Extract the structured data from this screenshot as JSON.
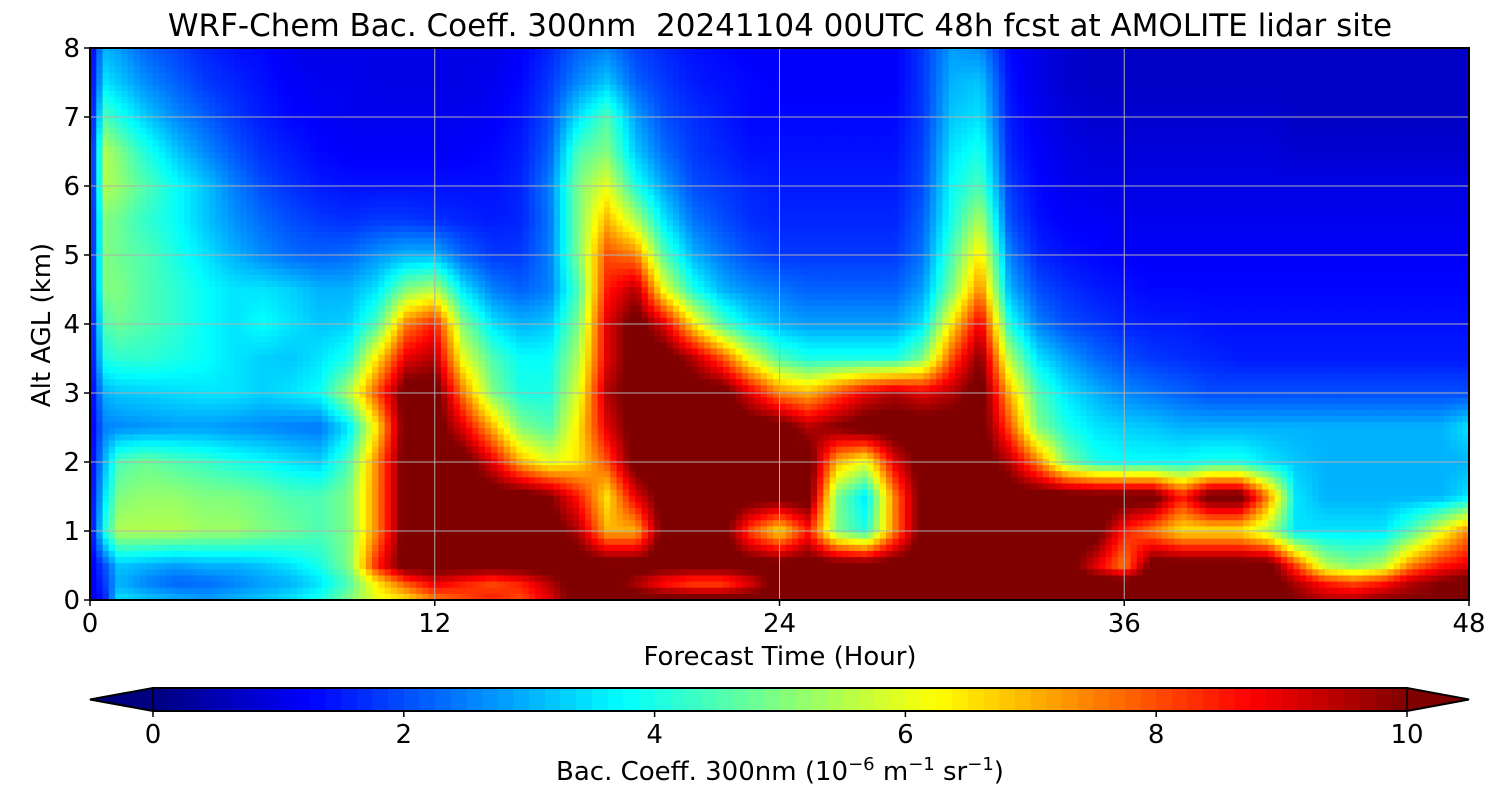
{
  "chart_data": {
    "type": "heatmap",
    "title": "WRF-Chem Bac. Coeff. 300nm  20241104 00UTC 48h fcst at AMOLITE lidar site",
    "xlabel": "Forecast Time (Hour)",
    "ylabel": "Alt AGL (km)",
    "xlim": [
      0,
      48
    ],
    "ylim": [
      0,
      8
    ],
    "xticks": [
      0,
      12,
      24,
      36,
      48
    ],
    "yticks": [
      0,
      1,
      2,
      3,
      4,
      5,
      6,
      7,
      8
    ],
    "grid": true,
    "colormap": "jet",
    "colorbar": {
      "orientation": "horizontal",
      "placement": "bottom",
      "label_prefix": "Bac. Coeff. 300nm  (10",
      "label_exp1": "−6",
      "label_mid": " m",
      "label_exp2": "−1",
      "label_mid2": " sr",
      "label_exp3": "−1",
      "label_suffix": ")",
      "min": 0,
      "max": 10,
      "ticks": [
        0,
        2,
        4,
        6,
        8,
        10
      ],
      "extend": "both"
    },
    "x_hours": [
      0,
      0.5,
      1,
      2,
      3,
      4,
      5,
      6,
      7,
      8,
      9,
      10,
      11,
      12,
      13,
      14,
      15,
      16,
      17,
      18,
      19,
      20,
      21,
      22,
      23,
      24,
      25,
      26,
      27,
      28,
      29,
      30,
      31,
      32,
      33,
      34,
      35,
      36,
      37,
      38,
      39,
      40,
      41,
      42,
      43,
      44,
      45,
      46,
      47,
      48
    ],
    "y_km": [
      0,
      0.25,
      0.5,
      1,
      1.5,
      2,
      2.5,
      3,
      3.5,
      4,
      4.5,
      5,
      5.5,
      6,
      6.5,
      7,
      7.5,
      8
    ],
    "z": [
      [
        1.0,
        1.5,
        3.5,
        3.2,
        3.0,
        2.8,
        3.0,
        3.2,
        3.5,
        4.0,
        5.0,
        6.0,
        6.5,
        7.5,
        8.0,
        8.5,
        8.0,
        9.0,
        10.5,
        10.5,
        10.5,
        10.5,
        10.5,
        10.5,
        10.5,
        10.5,
        10.5,
        10.5,
        10.5,
        10.5,
        10.5,
        10.5,
        10.5,
        10.5,
        10.5,
        10.5,
        10.5,
        10.5,
        10.5,
        10.5,
        10.5,
        10.5,
        10.5,
        10.0,
        9.5,
        9.5,
        10.0,
        10.0,
        10.0,
        10.0
      ],
      [
        1.0,
        1.8,
        3.0,
        2.5,
        2.2,
        2.3,
        2.5,
        2.8,
        3.0,
        3.5,
        4.5,
        6.5,
        8.0,
        9.0,
        8.5,
        8.0,
        8.5,
        9.5,
        10.5,
        10.5,
        9.5,
        8.5,
        8.0,
        8.0,
        9.0,
        10.5,
        10.5,
        10.5,
        10.5,
        10.5,
        10.5,
        10.5,
        10.5,
        10.5,
        10.5,
        10.5,
        10.5,
        10.5,
        10.5,
        10.5,
        10.5,
        10.5,
        10.5,
        9.5,
        8.5,
        8.0,
        8.5,
        9.5,
        10.0,
        10.5
      ],
      [
        1.0,
        2.0,
        3.2,
        3.0,
        2.8,
        3.0,
        3.0,
        3.2,
        3.5,
        4.0,
        5.0,
        8.5,
        10.5,
        10.5,
        10.5,
        10.5,
        10.5,
        10.5,
        10.5,
        10.5,
        10.5,
        10.5,
        10.5,
        10.5,
        10.5,
        10.5,
        10.5,
        10.5,
        10.5,
        10.5,
        10.5,
        10.5,
        10.5,
        10.5,
        10.5,
        10.5,
        9.0,
        7.5,
        10.5,
        10.5,
        10.5,
        10.5,
        10.5,
        8.0,
        5.5,
        5.0,
        5.5,
        7.5,
        8.5,
        9.0
      ],
      [
        1.0,
        4.0,
        5.5,
        5.5,
        5.5,
        5.3,
        5.3,
        5.0,
        4.8,
        4.5,
        5.0,
        7.5,
        10.5,
        10.5,
        10.5,
        10.5,
        10.5,
        10.5,
        9.5,
        7.0,
        7.0,
        10.5,
        10.5,
        10.5,
        8.0,
        6.5,
        8.5,
        5.0,
        4.0,
        7.5,
        10.5,
        10.5,
        10.5,
        10.5,
        10.5,
        10.5,
        10.5,
        8.5,
        7.5,
        6.5,
        6.5,
        6.5,
        5.5,
        3.5,
        3.5,
        3.5,
        3.5,
        4.5,
        6.0,
        7.5
      ],
      [
        1.0,
        3.5,
        5.0,
        5.2,
        5.2,
        5.0,
        5.0,
        4.8,
        4.5,
        4.5,
        5.0,
        7.5,
        10.5,
        10.5,
        10.5,
        10.5,
        10.5,
        10.0,
        8.5,
        6.5,
        9.0,
        10.5,
        10.5,
        10.5,
        10.5,
        10.5,
        10.5,
        5.0,
        3.5,
        7.5,
        10.5,
        10.5,
        10.5,
        10.5,
        10.5,
        10.5,
        10.5,
        10.5,
        10.5,
        8.5,
        10.5,
        10.5,
        7.5,
        3.5,
        3.0,
        3.0,
        3.0,
        3.0,
        3.0,
        3.5
      ],
      [
        1.0,
        3.0,
        4.5,
        4.8,
        4.5,
        4.3,
        4.0,
        3.8,
        3.5,
        3.3,
        4.5,
        7.5,
        10.5,
        10.5,
        10.5,
        9.0,
        7.0,
        6.0,
        6.5,
        8.0,
        10.5,
        10.5,
        10.5,
        10.5,
        10.5,
        10.5,
        10.5,
        7.0,
        6.0,
        9.0,
        10.5,
        10.5,
        10.5,
        9.5,
        7.5,
        5.0,
        4.0,
        3.8,
        3.8,
        3.8,
        4.0,
        4.0,
        3.5,
        3.2,
        3.0,
        3.0,
        3.0,
        3.0,
        3.0,
        3.0
      ],
      [
        1.0,
        2.5,
        2.6,
        2.7,
        2.8,
        2.8,
        2.7,
        2.6,
        2.5,
        2.4,
        3.5,
        6.5,
        10.5,
        10.5,
        9.0,
        7.0,
        5.0,
        4.5,
        6.5,
        9.0,
        10.5,
        10.5,
        10.5,
        10.5,
        10.5,
        10.5,
        9.5,
        10.0,
        10.5,
        10.5,
        10.5,
        10.5,
        10.5,
        8.0,
        5.0,
        4.0,
        3.5,
        3.3,
        3.2,
        3.0,
        3.0,
        3.0,
        3.0,
        3.0,
        3.0,
        3.0,
        3.0,
        3.0,
        3.0,
        3.5
      ],
      [
        1.0,
        3.0,
        3.2,
        3.3,
        3.4,
        3.5,
        3.5,
        3.3,
        3.5,
        3.8,
        5.5,
        8.0,
        10.5,
        10.5,
        7.5,
        5.0,
        4.0,
        4.0,
        6.0,
        9.5,
        10.5,
        10.5,
        10.5,
        10.5,
        9.0,
        7.5,
        7.0,
        8.0,
        9.0,
        9.5,
        9.0,
        9.5,
        10.5,
        7.0,
        4.5,
        3.5,
        3.0,
        2.6,
        2.4,
        2.2,
        2.0,
        2.0,
        2.0,
        2.0,
        2.0,
        2.0,
        2.0,
        2.0,
        2.0,
        2.0
      ],
      [
        1.0,
        4.0,
        4.2,
        4.2,
        4.0,
        3.8,
        3.5,
        3.3,
        3.2,
        3.5,
        4.0,
        6.5,
        9.0,
        9.5,
        6.0,
        4.5,
        3.8,
        3.8,
        5.5,
        9.0,
        10.5,
        10.5,
        9.5,
        8.0,
        6.0,
        4.5,
        4.0,
        4.0,
        4.0,
        4.0,
        5.0,
        8.0,
        10.0,
        5.5,
        3.5,
        2.8,
        2.3,
        2.0,
        1.8,
        1.7,
        1.6,
        1.5,
        1.5,
        1.5,
        1.5,
        1.5,
        1.5,
        1.5,
        1.5,
        1.5
      ],
      [
        1.0,
        4.5,
        4.8,
        4.5,
        4.2,
        3.8,
        3.5,
        3.8,
        3.5,
        3.2,
        3.3,
        4.5,
        7.5,
        8.5,
        5.0,
        3.5,
        3.0,
        3.2,
        5.0,
        9.0,
        10.5,
        9.0,
        6.5,
        4.5,
        3.5,
        3.0,
        2.8,
        2.8,
        2.8,
        2.8,
        3.5,
        6.5,
        9.0,
        4.0,
        2.5,
        2.0,
        1.8,
        1.6,
        1.5,
        1.5,
        1.4,
        1.4,
        1.4,
        1.4,
        1.4,
        1.4,
        1.4,
        1.4,
        1.4,
        1.4
      ],
      [
        1.0,
        5.0,
        5.0,
        4.5,
        4.2,
        3.8,
        3.5,
        3.5,
        3.3,
        3.0,
        3.0,
        3.5,
        5.0,
        5.5,
        3.5,
        2.5,
        2.2,
        2.5,
        4.5,
        8.5,
        9.5,
        6.0,
        4.0,
        3.0,
        2.6,
        2.4,
        2.2,
        2.2,
        2.2,
        2.2,
        2.8,
        5.0,
        7.5,
        3.0,
        2.0,
        1.7,
        1.5,
        1.4,
        1.3,
        1.3,
        1.3,
        1.3,
        1.3,
        1.3,
        1.3,
        1.3,
        1.3,
        1.3,
        1.3,
        1.3
      ],
      [
        1.0,
        5.0,
        4.8,
        4.5,
        4.0,
        3.5,
        3.0,
        2.6,
        2.3,
        2.2,
        2.3,
        2.7,
        3.0,
        3.0,
        2.2,
        1.8,
        1.8,
        2.5,
        5.0,
        8.0,
        7.5,
        4.5,
        3.0,
        2.4,
        2.0,
        1.8,
        1.8,
        1.8,
        1.8,
        1.8,
        2.4,
        4.5,
        6.5,
        2.5,
        1.6,
        1.4,
        1.3,
        1.2,
        1.2,
        1.2,
        1.2,
        1.2,
        1.2,
        1.2,
        1.2,
        1.2,
        1.2,
        1.2,
        1.2,
        1.2
      ],
      [
        1.0,
        5.0,
        4.8,
        4.2,
        3.8,
        3.2,
        2.7,
        2.3,
        2.0,
        1.8,
        1.7,
        1.8,
        1.8,
        1.7,
        1.6,
        1.5,
        1.6,
        2.4,
        5.0,
        7.0,
        5.5,
        3.5,
        2.4,
        2.0,
        1.7,
        1.6,
        1.6,
        1.6,
        1.6,
        1.6,
        2.2,
        4.0,
        5.5,
        2.0,
        1.4,
        1.2,
        1.2,
        1.1,
        1.1,
        1.1,
        1.1,
        1.1,
        1.1,
        1.1,
        1.1,
        1.1,
        1.1,
        1.1,
        1.1,
        1.1
      ],
      [
        1.0,
        5.5,
        5.2,
        4.5,
        3.8,
        3.2,
        2.5,
        2.0,
        1.7,
        1.5,
        1.4,
        1.4,
        1.4,
        1.4,
        1.4,
        1.4,
        1.6,
        2.5,
        5.0,
        6.0,
        4.0,
        2.8,
        2.0,
        1.8,
        1.6,
        1.5,
        1.5,
        1.5,
        1.5,
        1.5,
        2.0,
        3.8,
        4.5,
        1.8,
        1.3,
        1.1,
        1.0,
        1.0,
        1.0,
        1.0,
        1.0,
        1.0,
        1.0,
        1.0,
        1.0,
        1.0,
        1.0,
        1.0,
        1.0,
        1.0
      ],
      [
        1.0,
        5.5,
        5.0,
        4.0,
        3.2,
        2.6,
        2.1,
        1.7,
        1.5,
        1.3,
        1.2,
        1.2,
        1.2,
        1.2,
        1.2,
        1.3,
        1.5,
        2.2,
        4.5,
        5.0,
        3.2,
        2.3,
        1.8,
        1.6,
        1.4,
        1.4,
        1.4,
        1.4,
        1.4,
        1.4,
        1.9,
        3.5,
        4.0,
        1.6,
        1.2,
        1.0,
        0.9,
        0.9,
        0.9,
        0.9,
        0.9,
        0.9,
        0.9,
        0.8,
        0.8,
        0.8,
        0.8,
        0.8,
        0.8,
        0.8
      ],
      [
        1.0,
        4.5,
        4.0,
        3.2,
        2.6,
        2.2,
        1.8,
        1.5,
        1.3,
        1.2,
        1.1,
        1.1,
        1.1,
        1.1,
        1.1,
        1.2,
        1.4,
        2.0,
        3.5,
        4.5,
        2.8,
        2.0,
        1.7,
        1.5,
        1.3,
        1.3,
        1.3,
        1.3,
        1.3,
        1.3,
        1.8,
        3.2,
        3.5,
        1.5,
        1.1,
        0.9,
        0.8,
        0.8,
        0.8,
        0.8,
        0.8,
        0.8,
        0.8,
        0.7,
        0.7,
        0.7,
        0.7,
        0.7,
        0.7,
        0.7
      ],
      [
        1.0,
        3.5,
        3.2,
        2.6,
        2.2,
        1.8,
        1.6,
        1.4,
        1.2,
        1.1,
        1.1,
        1.0,
        1.0,
        1.0,
        1.0,
        1.1,
        1.3,
        1.8,
        2.6,
        3.2,
        2.2,
        1.8,
        1.5,
        1.4,
        1.3,
        1.2,
        1.2,
        1.2,
        1.2,
        1.2,
        1.8,
        3.0,
        3.2,
        1.4,
        1.0,
        0.8,
        0.7,
        0.7,
        0.7,
        0.7,
        0.7,
        0.7,
        0.7,
        0.7,
        0.7,
        0.7,
        0.7,
        0.7,
        0.7,
        0.7
      ],
      [
        1.0,
        3.0,
        2.8,
        2.2,
        1.9,
        1.6,
        1.4,
        1.3,
        1.1,
        1.0,
        1.0,
        1.0,
        1.0,
        1.0,
        1.0,
        1.0,
        1.2,
        1.6,
        2.2,
        2.5,
        1.9,
        1.6,
        1.4,
        1.3,
        1.2,
        1.2,
        1.2,
        1.2,
        1.2,
        1.2,
        1.8,
        2.8,
        2.6,
        1.3,
        1.0,
        0.8,
        0.7,
        0.7,
        0.7,
        0.7,
        0.7,
        0.7,
        0.7,
        0.7,
        0.7,
        0.7,
        0.7,
        0.7,
        0.7,
        0.7
      ]
    ]
  }
}
